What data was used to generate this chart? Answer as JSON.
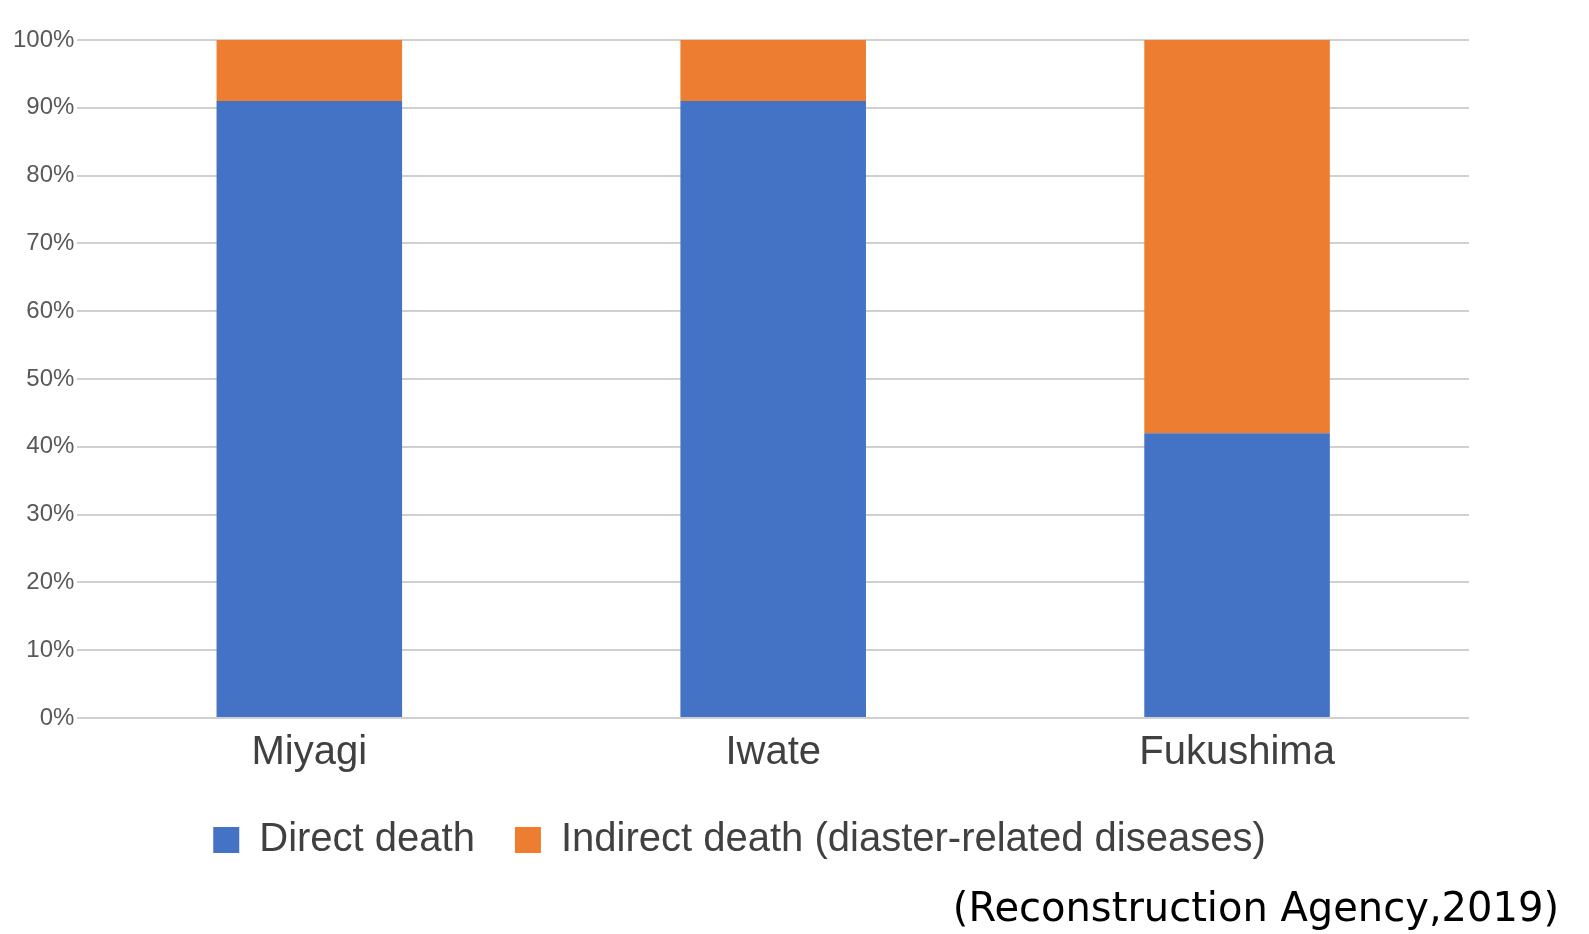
{
  "chart_data": {
    "type": "bar",
    "stacked": true,
    "categories": [
      "Miyagi",
      "Iwate",
      "Fukushima"
    ],
    "series": [
      {
        "name": "Direct death",
        "color": "#4472c4",
        "values": [
          91,
          91,
          42
        ]
      },
      {
        "name": "Indirect death (diaster-related diseases)",
        "color": "#ed7d31",
        "values": [
          9,
          9,
          58
        ]
      }
    ],
    "ylim": [
      0,
      100
    ],
    "yticks": [
      {
        "value": 0,
        "label": "0%"
      },
      {
        "value": 10,
        "label": "10%"
      },
      {
        "value": 20,
        "label": "20%"
      },
      {
        "value": 30,
        "label": "30%"
      },
      {
        "value": 40,
        "label": "40%"
      },
      {
        "value": 50,
        "label": "50%"
      },
      {
        "value": 60,
        "label": "60%"
      },
      {
        "value": 70,
        "label": "70%"
      },
      {
        "value": 80,
        "label": "80%"
      },
      {
        "value": 90,
        "label": "90%"
      },
      {
        "value": 100,
        "label": "100%"
      }
    ],
    "grid": "y",
    "legend": "bottom",
    "annotations": [
      "(Reconstruction Agency,2019)"
    ]
  }
}
